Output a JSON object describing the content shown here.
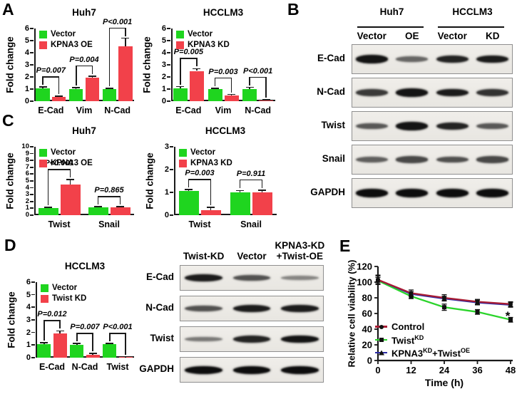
{
  "panels": {
    "A": "A",
    "B": "B",
    "C": "C",
    "D": "D",
    "E": "E"
  },
  "colors": {
    "vector_green": "#1FD51F",
    "treatment_red": "#F2414A",
    "axis": "#1a1a1a",
    "control_line": "#A81C33",
    "twist_kd_line": "#2BD42B",
    "kpna3_twist_line": "#2B2BA6",
    "marker_black": "#111111",
    "blot_border": "#8f8f8f",
    "band": "#0d0d0d"
  },
  "chart_data": [
    {
      "id": "A-huh7",
      "type": "bar",
      "panel": "A",
      "title": "Huh7",
      "ylabel": "Fold change",
      "ylim": [
        0,
        6
      ],
      "yticks": [
        0,
        1,
        2,
        3,
        4,
        5,
        6
      ],
      "categories": [
        "E-Cad",
        "Vim",
        "N-Cad"
      ],
      "series": [
        {
          "name": "Vector",
          "values": [
            1.05,
            1.02,
            1.0
          ],
          "errors": [
            0.12,
            0.1,
            0.07
          ]
        },
        {
          "name": "KPNA3 OE",
          "values": [
            0.35,
            1.92,
            4.55
          ],
          "errors": [
            0.07,
            0.15,
            0.65
          ]
        }
      ],
      "pvalues": [
        "P=0.007",
        "P=0.004",
        "P<0.001"
      ]
    },
    {
      "id": "A-hcclm3",
      "type": "bar",
      "panel": "A",
      "title": "HCCLM3",
      "ylabel": "Fold change",
      "ylim": [
        0,
        6
      ],
      "yticks": [
        0,
        1,
        2,
        3,
        4,
        5,
        6
      ],
      "categories": [
        "E-Cad",
        "Vim",
        "N-Cad"
      ],
      "series": [
        {
          "name": "Vector",
          "values": [
            1.05,
            1.0,
            1.02
          ],
          "errors": [
            0.15,
            0.07,
            0.12
          ]
        },
        {
          "name": "KPNA3 KD",
          "values": [
            2.5,
            0.45,
            0.08
          ],
          "errors": [
            0.18,
            0.1,
            0.05
          ]
        }
      ],
      "pvalues": [
        "P=0.005",
        "P=0.003",
        "P<0.001"
      ]
    },
    {
      "id": "C-huh7",
      "type": "bar",
      "panel": "C",
      "title": "Huh7",
      "ylabel": "Fold change",
      "ylim": [
        0,
        10
      ],
      "yticks": [
        0,
        1,
        2,
        3,
        4,
        5,
        6,
        7,
        8,
        9,
        10
      ],
      "categories": [
        "Twist",
        "Snail"
      ],
      "series": [
        {
          "name": "Vector",
          "values": [
            1.0,
            1.15
          ],
          "errors": [
            0.12,
            0.08
          ]
        },
        {
          "name": "KPNA3 OE",
          "values": [
            4.5,
            1.1
          ],
          "errors": [
            0.7,
            0.15
          ]
        }
      ],
      "pvalues": [
        "P<0.001",
        "P=0.865"
      ]
    },
    {
      "id": "C-hcclm3",
      "type": "bar",
      "panel": "C",
      "title": "HCCLM3",
      "ylabel": "Fold change",
      "ylim": [
        0,
        3
      ],
      "yticks": [
        0,
        1,
        2,
        3
      ],
      "categories": [
        "Twist",
        "Snail"
      ],
      "series": [
        {
          "name": "Vector",
          "values": [
            1.05,
            1.0
          ],
          "errors": [
            0.07,
            0.08
          ]
        },
        {
          "name": "KPNA3 KD",
          "values": [
            0.22,
            1.0
          ],
          "errors": [
            0.12,
            0.1
          ]
        }
      ],
      "pvalues": [
        "P=0.003",
        "P=0.911"
      ]
    },
    {
      "id": "D-hcclm3",
      "type": "bar",
      "panel": "D",
      "title": "HCCLM3",
      "ylabel": "Fold change",
      "ylim": [
        0,
        6
      ],
      "yticks": [
        0,
        1,
        2,
        3,
        4,
        5,
        6
      ],
      "categories": [
        "E-Cad",
        "N-Cad",
        "Twist"
      ],
      "series": [
        {
          "name": "Vector",
          "values": [
            1.05,
            1.0,
            1.05
          ],
          "errors": [
            0.15,
            0.12,
            0.08
          ]
        },
        {
          "name": "Twist KD",
          "values": [
            1.95,
            0.2,
            0.05
          ],
          "errors": [
            0.18,
            0.13,
            0.03
          ]
        }
      ],
      "pvalues": [
        "P=0.012",
        "P=0.007",
        "P<0.001"
      ]
    },
    {
      "id": "E-viability",
      "type": "line",
      "panel": "E",
      "ylabel": "Relative cell viability (%)",
      "xlabel": "Time (h)",
      "ylim": [
        0,
        120
      ],
      "yticks": [
        0,
        20,
        40,
        60,
        80,
        100,
        120
      ],
      "x": [
        0,
        12,
        24,
        36,
        48
      ],
      "xticks": [
        0,
        12,
        24,
        36,
        48
      ],
      "series": [
        {
          "name": "Control",
          "name_parts": [
            {
              "t": "Control"
            }
          ],
          "color_key": "control_line",
          "marker": "circle",
          "values": [
            103,
            86,
            80,
            75,
            72
          ],
          "errors": [
            6,
            4,
            4,
            3,
            3
          ]
        },
        {
          "name": "TwistKD",
          "name_parts": [
            {
              "t": "Twist"
            },
            {
              "t": "KD",
              "sup": true
            }
          ],
          "color_key": "twist_kd_line",
          "marker": "square",
          "values": [
            102,
            82,
            68,
            62,
            52
          ],
          "errors": [
            4,
            3,
            4,
            3,
            3
          ]
        },
        {
          "name": "KPNA3KD+TwistOE",
          "name_parts": [
            {
              "t": "KPNA3"
            },
            {
              "t": "KD",
              "sup": true
            },
            {
              "t": "+Twist"
            },
            {
              "t": "OE",
              "sup": true
            }
          ],
          "color_key": "kpna3_twist_line",
          "marker": "triangle",
          "values": [
            103,
            85,
            79,
            74,
            71
          ],
          "errors": [
            5,
            3,
            3,
            3,
            3
          ]
        }
      ],
      "annotation": {
        "text": "*",
        "x": 48,
        "y": 60
      },
      "legend_position": "bottom-left"
    }
  ],
  "blots": {
    "B": {
      "groups": [
        {
          "label": "Huh7",
          "lanes": [
            "Vector",
            "OE"
          ]
        },
        {
          "label": "HCCLM3",
          "lanes": [
            "Vector",
            "KD"
          ]
        }
      ],
      "rows": [
        {
          "label": "E-Cad",
          "bands": [
            0.95,
            0.4,
            0.85,
            0.9
          ]
        },
        {
          "label": "N-Cad",
          "bands": [
            0.7,
            0.95,
            0.9,
            0.75
          ]
        },
        {
          "label": "Twist",
          "bands": [
            0.5,
            0.95,
            0.85,
            0.5
          ]
        },
        {
          "label": "Snail",
          "bands": [
            0.45,
            0.6,
            0.55,
            0.6
          ]
        },
        {
          "label": "GAPDH",
          "bands": [
            1,
            1,
            1,
            1
          ]
        }
      ]
    },
    "D": {
      "lanes": [
        "Twist-KD",
        "Vector",
        "KPNA3-KD\n+Twist-OE"
      ],
      "rows": [
        {
          "label": "E-Cad",
          "bands": [
            0.9,
            0.55,
            0.22
          ]
        },
        {
          "label": "N-Cad",
          "bands": [
            0.55,
            0.9,
            0.9
          ]
        },
        {
          "label": "Twist",
          "bands": [
            0.3,
            0.85,
            0.95
          ]
        },
        {
          "label": "GAPDH",
          "bands": [
            1,
            1,
            1
          ]
        }
      ]
    }
  }
}
